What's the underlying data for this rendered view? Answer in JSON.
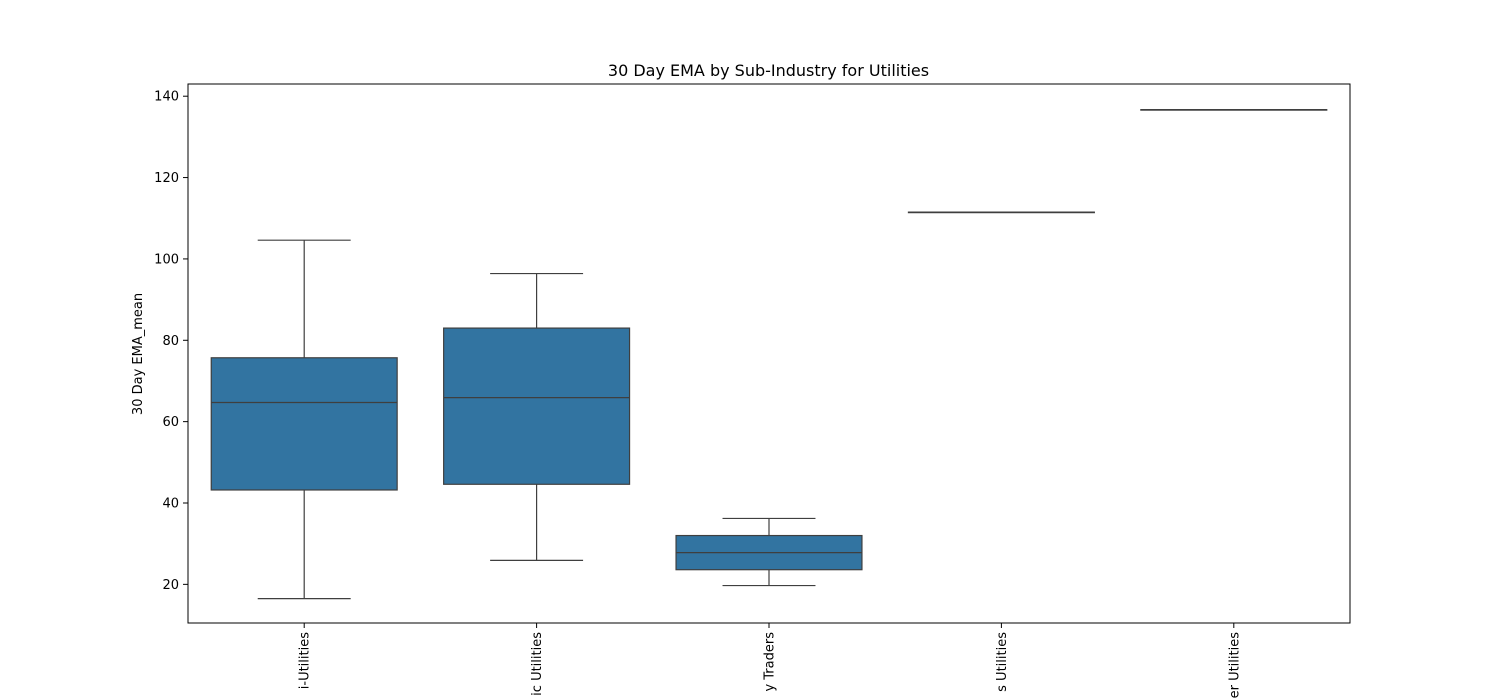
{
  "chart_data": {
    "type": "box",
    "title": "30 Day EMA by Sub-Industry for Utilities",
    "xlabel": "",
    "ylabel": "30 Day EMA_mean",
    "ylim": [
      10.5,
      143
    ],
    "yticks": [
      20,
      40,
      60,
      80,
      100,
      120,
      140
    ],
    "grid": false,
    "box_color": "#3274a1",
    "line_color": "#3f3f3f",
    "categories": [
      "Multi-Utilities",
      "Electric Utilities",
      "Independent Power Producers & Energy Traders",
      "Gas Utilities",
      "Water Utilities"
    ],
    "category_labels_visible": [
      "i-Utilities",
      "ic Utilities",
      "y Traders",
      "s Utilities",
      "er Utilities"
    ],
    "boxes": [
      {
        "category": "Multi-Utilities",
        "whisker_low": 16.5,
        "q1": 43.2,
        "median": 64.7,
        "q3": 75.7,
        "whisker_high": 104.6
      },
      {
        "category": "Electric Utilities",
        "whisker_low": 25.9,
        "q1": 44.6,
        "median": 65.9,
        "q3": 83.0,
        "whisker_high": 96.4
      },
      {
        "category": "Independent Power Producers & Energy Traders",
        "whisker_low": 19.7,
        "q1": 23.6,
        "median": 27.8,
        "q3": 32.0,
        "whisker_high": 36.2
      },
      {
        "category": "Gas Utilities",
        "whisker_low": 111.5,
        "q1": 111.5,
        "median": 111.5,
        "q3": 111.5,
        "whisker_high": 111.5
      },
      {
        "category": "Water Utilities",
        "whisker_low": 136.7,
        "q1": 136.7,
        "median": 136.7,
        "q3": 136.7,
        "whisker_high": 136.7
      }
    ]
  }
}
